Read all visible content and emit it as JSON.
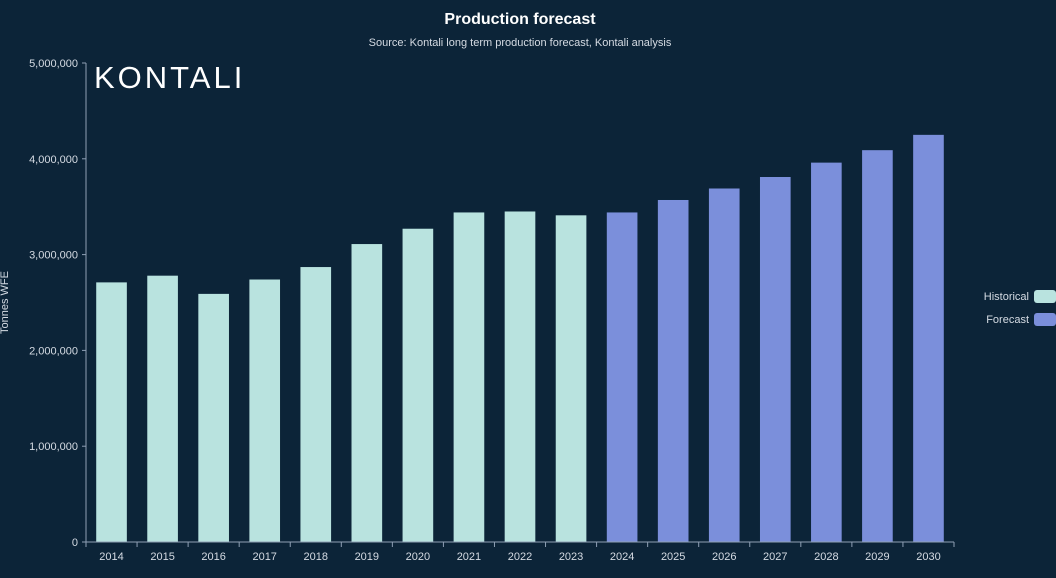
{
  "colors": {
    "background": "#0c2438",
    "historical": "#b9e3df",
    "forecast": "#7b8fdb",
    "axis": "#8fa0b5",
    "text": "#d5dbe3",
    "title": "#ffffff"
  },
  "logo_text": "KONTALI",
  "chart_data": {
    "type": "bar",
    "title": "Production forecast",
    "subtitle": "Source: Kontali long term production forecast, Kontali analysis",
    "xlabel": "",
    "ylabel": "Tonnes WFE",
    "ylim": [
      0,
      5000000
    ],
    "yticks": [
      "0",
      "1,000,000",
      "2,000,000",
      "3,000,000",
      "4,000,000",
      "5,000,000"
    ],
    "ytick_values": [
      0,
      1000000,
      2000000,
      3000000,
      4000000,
      5000000
    ],
    "categories": [
      "2014",
      "2015",
      "2016",
      "2017",
      "2018",
      "2019",
      "2020",
      "2021",
      "2022",
      "2023",
      "2024",
      "2025",
      "2026",
      "2027",
      "2028",
      "2029",
      "2030"
    ],
    "values": [
      2710000,
      2780000,
      2590000,
      2740000,
      2870000,
      3110000,
      3270000,
      3440000,
      3450000,
      3410000,
      3440000,
      3570000,
      3690000,
      3810000,
      3960000,
      4090000,
      4250000
    ],
    "series_assignment": [
      "Historical",
      "Historical",
      "Historical",
      "Historical",
      "Historical",
      "Historical",
      "Historical",
      "Historical",
      "Historical",
      "Historical",
      "Forecast",
      "Forecast",
      "Forecast",
      "Forecast",
      "Forecast",
      "Forecast",
      "Forecast"
    ],
    "legend": [
      {
        "name": "Historical",
        "color": "#b9e3df"
      },
      {
        "name": "Forecast",
        "color": "#7b8fdb"
      }
    ],
    "legend_position": "right",
    "grid": false
  }
}
